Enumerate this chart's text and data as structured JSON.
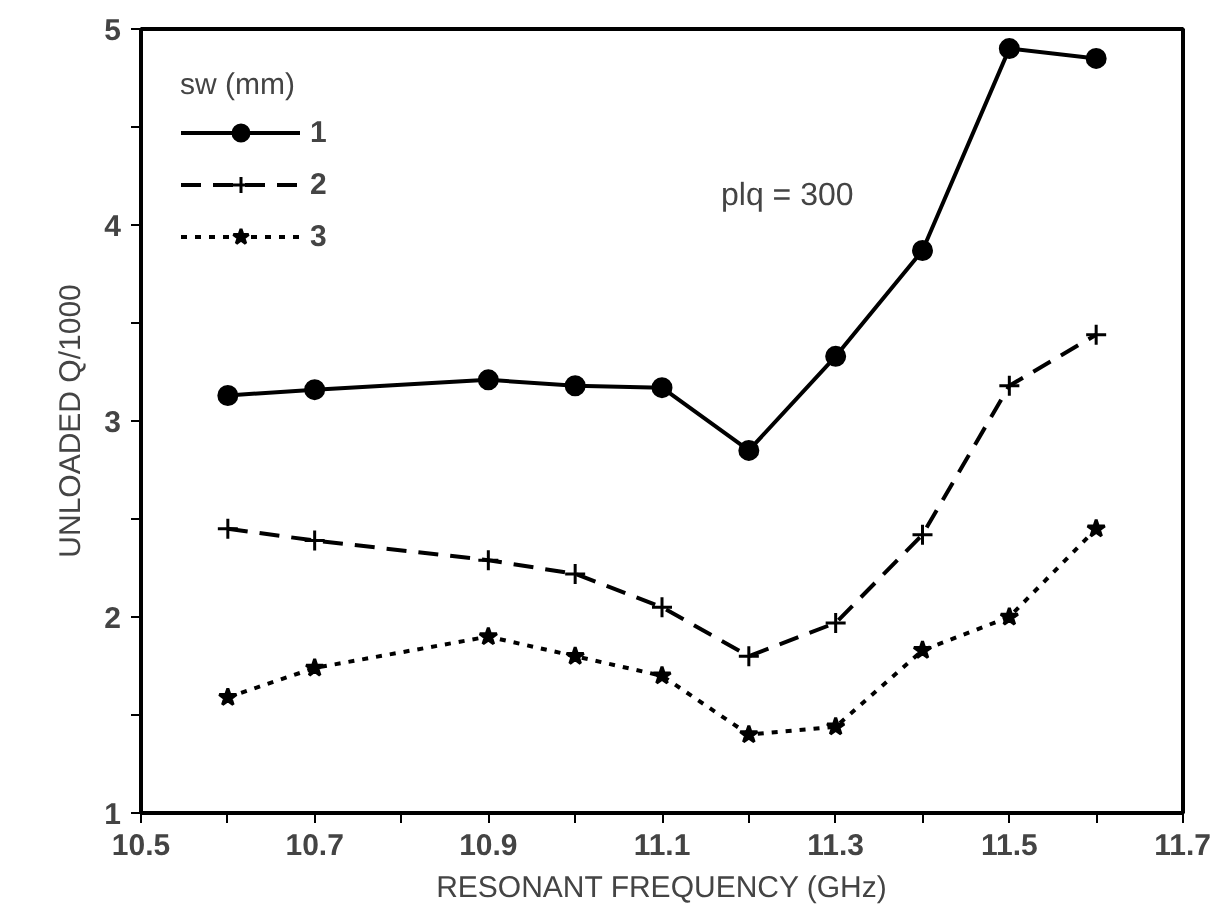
{
  "chart_data": {
    "type": "line",
    "xlabel": "RESONANT FREQUENCY (GHz)",
    "ylabel": "UNLOADED Q/1000",
    "legend_title": "sw (mm)",
    "annotations": [
      "plq = 300"
    ],
    "x": [
      10.6,
      10.7,
      10.9,
      11.0,
      11.1,
      11.2,
      11.3,
      11.4,
      11.5,
      11.6
    ],
    "xlim": [
      10.5,
      11.7
    ],
    "xticks": [
      10.5,
      {
        "value": 10.6,
        "label": null
      },
      10.7,
      {
        "value": 10.8,
        "label": null
      },
      10.9,
      {
        "value": 11.0,
        "label": null
      },
      11.1,
      {
        "value": 11.2,
        "label": null
      },
      11.3,
      {
        "value": 11.4,
        "label": null
      },
      11.5,
      {
        "value": 11.6,
        "label": null
      },
      11.7
    ],
    "ylim": [
      1,
      5
    ],
    "yticks": [
      1,
      {
        "value": 1.5,
        "label": null
      },
      2,
      {
        "value": 2.5,
        "label": null
      },
      3,
      {
        "value": 3.5,
        "label": null
      },
      4,
      {
        "value": 4.5,
        "label": null
      },
      5
    ],
    "grid": false,
    "legend": "top left",
    "series": [
      {
        "name": "1",
        "color": "#000000",
        "marker": "circle",
        "line_style": "solid",
        "values": [
          3.13,
          3.16,
          3.21,
          3.18,
          3.17,
          2.85,
          3.33,
          3.87,
          4.9,
          4.85
        ]
      },
      {
        "name": "2",
        "color": "#000000",
        "marker": "cross",
        "line_style": "dashed",
        "values": [
          2.45,
          2.39,
          2.29,
          2.22,
          2.05,
          1.8,
          1.97,
          2.42,
          3.18,
          3.44
        ]
      },
      {
        "name": "3",
        "color": "#000000",
        "marker": "star",
        "line_style": "dotted",
        "values": [
          1.59,
          1.74,
          1.9,
          1.8,
          1.7,
          1.4,
          1.44,
          1.83,
          2.0,
          2.45
        ]
      }
    ]
  }
}
